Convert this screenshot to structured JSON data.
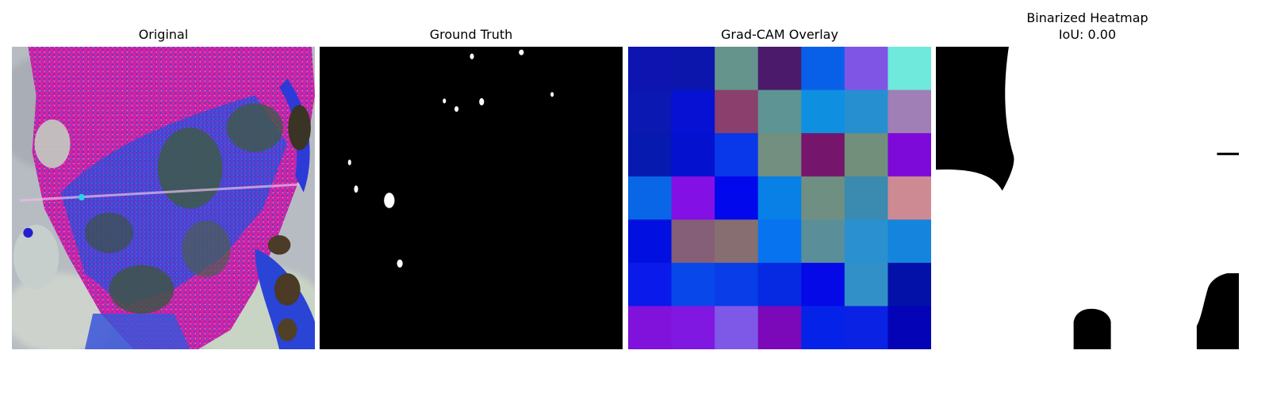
{
  "panels": [
    {
      "title": "Original"
    },
    {
      "title": "Ground Truth"
    },
    {
      "title": "Grad-CAM Overlay"
    },
    {
      "title": "Binarized Heatmap",
      "subtitle": "IoU: 0.00"
    }
  ],
  "heatmap_grid": {
    "rows": 7,
    "cols": 7,
    "colors": [
      [
        "#0d14b0",
        "#0c16ad",
        "#64948c",
        "#4b1a6b",
        "#0960e8",
        "#7f55e6",
        "#6ee9db"
      ],
      [
        "#0b18b2",
        "#0611d4",
        "#8a3f6c",
        "#5f9494",
        "#0f8fe0",
        "#268fd0",
        "#9f7fb6"
      ],
      [
        "#061ab0",
        "#0412cf",
        "#0838ea",
        "#728f7f",
        "#75166c",
        "#718f7a",
        "#7d0ad9"
      ],
      [
        "#0966e6",
        "#8310e4",
        "#0208ec",
        "#0880e6",
        "#6f8f82",
        "#3b8ab0",
        "#ce8a92"
      ],
      [
        "#020fe1",
        "#855e77",
        "#876e70",
        "#0873ee",
        "#5a8f9a",
        "#2b90cf",
        "#1584dc"
      ],
      [
        "#0a1aea",
        "#0848ea",
        "#083de8",
        "#0629e2",
        "#0509e8",
        "#3290c8",
        "#0311a8"
      ],
      [
        "#8012dc",
        "#8118e2",
        "#7e58e6",
        "#7b08b9",
        "#0523e8",
        "#0a22e4",
        "#0404b6"
      ]
    ]
  }
}
